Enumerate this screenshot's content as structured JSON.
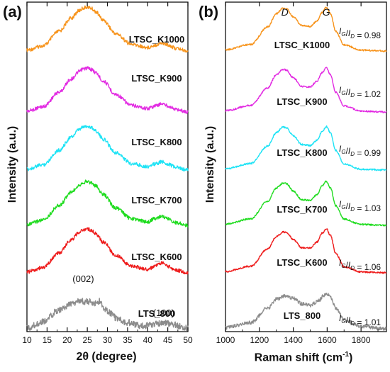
{
  "panels": [
    {
      "letter": "(a)",
      "xlabel": "2θ (degree)",
      "ylabel": "Intensity (a.u.)"
    },
    {
      "letter": "(b)",
      "xlabel": "Raman shift (cm",
      "xlabel_sup": "-1",
      "xlabel_tail": ")",
      "ylabel": "Intensity (a.u.)"
    }
  ],
  "chart_data": [
    {
      "type": "line",
      "xlabel": "2θ (degree)",
      "ylabel": "Intensity (a.u.)",
      "xlim": [
        10,
        50
      ],
      "xticks": [
        10,
        15,
        20,
        25,
        30,
        35,
        40,
        45,
        50
      ],
      "yticks_visible": false,
      "stacked_offsets": true,
      "series": [
        {
          "name": "LTSC_K1000",
          "color": "#f7941d",
          "offset": 5,
          "points": [
            [
              10,
              0.02
            ],
            [
              14,
              0.12
            ],
            [
              18,
              0.45
            ],
            [
              21,
              0.75
            ],
            [
              23,
              0.92
            ],
            [
              24,
              0.98
            ],
            [
              25,
              1.0
            ],
            [
              26,
              0.97
            ],
            [
              27,
              0.9
            ],
            [
              29,
              0.7
            ],
            [
              32,
              0.4
            ],
            [
              36,
              0.15
            ],
            [
              40,
              0.08
            ],
            [
              42,
              0.14
            ],
            [
              43.5,
              0.18
            ],
            [
              45,
              0.14
            ],
            [
              47,
              0.06
            ],
            [
              50,
              0.0
            ]
          ]
        },
        {
          "name": "LTSC_K900",
          "color": "#e22be2",
          "offset": 4,
          "points": [
            [
              10,
              0.02
            ],
            [
              14,
              0.12
            ],
            [
              18,
              0.45
            ],
            [
              21,
              0.75
            ],
            [
              23,
              0.92
            ],
            [
              24,
              0.98
            ],
            [
              25,
              1.0
            ],
            [
              26,
              0.97
            ],
            [
              27,
              0.9
            ],
            [
              29,
              0.7
            ],
            [
              32,
              0.4
            ],
            [
              36,
              0.15
            ],
            [
              40,
              0.08
            ],
            [
              42,
              0.14
            ],
            [
              43.5,
              0.19
            ],
            [
              45,
              0.14
            ],
            [
              47,
              0.06
            ],
            [
              50,
              0.0
            ]
          ]
        },
        {
          "name": "LTSC_K800",
          "color": "#1ee3f5",
          "offset": 3,
          "points": [
            [
              10,
              0.02
            ],
            [
              14,
              0.12
            ],
            [
              18,
              0.45
            ],
            [
              21,
              0.75
            ],
            [
              23,
              0.92
            ],
            [
              24,
              0.98
            ],
            [
              25,
              1.0
            ],
            [
              26,
              0.97
            ],
            [
              27,
              0.9
            ],
            [
              29,
              0.7
            ],
            [
              32,
              0.4
            ],
            [
              36,
              0.15
            ],
            [
              40,
              0.08
            ],
            [
              42,
              0.14
            ],
            [
              43.5,
              0.19
            ],
            [
              45,
              0.14
            ],
            [
              47,
              0.06
            ],
            [
              50,
              0.0
            ]
          ]
        },
        {
          "name": "LTSC_K700",
          "color": "#1fdc1f",
          "offset": 2,
          "points": [
            [
              10,
              0.02
            ],
            [
              14,
              0.12
            ],
            [
              18,
              0.45
            ],
            [
              21,
              0.75
            ],
            [
              23,
              0.92
            ],
            [
              24,
              0.98
            ],
            [
              25,
              1.0
            ],
            [
              26,
              0.97
            ],
            [
              27,
              0.9
            ],
            [
              29,
              0.7
            ],
            [
              32,
              0.4
            ],
            [
              36,
              0.15
            ],
            [
              40,
              0.08
            ],
            [
              42,
              0.16
            ],
            [
              43.5,
              0.21
            ],
            [
              45,
              0.15
            ],
            [
              47,
              0.06
            ],
            [
              50,
              0.0
            ]
          ]
        },
        {
          "name": "LTSC_K600",
          "color": "#ee1c1c",
          "offset": 1,
          "points": [
            [
              10,
              0.02
            ],
            [
              14,
              0.12
            ],
            [
              18,
              0.45
            ],
            [
              21,
              0.75
            ],
            [
              23,
              0.92
            ],
            [
              24,
              0.98
            ],
            [
              25,
              1.0
            ],
            [
              26,
              0.97
            ],
            [
              27,
              0.9
            ],
            [
              29,
              0.7
            ],
            [
              32,
              0.4
            ],
            [
              36,
              0.15
            ],
            [
              40,
              0.08
            ],
            [
              42,
              0.16
            ],
            [
              43.5,
              0.22
            ],
            [
              45,
              0.15
            ],
            [
              47,
              0.06
            ],
            [
              50,
              0.0
            ]
          ]
        },
        {
          "name": "LTS_800",
          "color": "#8c8c8c",
          "offset": 0,
          "points": [
            [
              10,
              0.04
            ],
            [
              14,
              0.2
            ],
            [
              18,
              0.5
            ],
            [
              21,
              0.65
            ],
            [
              23,
              0.72
            ],
            [
              25,
              0.72
            ],
            [
              27,
              0.66
            ],
            [
              28,
              0.72
            ],
            [
              29,
              0.55
            ],
            [
              31,
              0.42
            ],
            [
              32,
              0.3
            ],
            [
              35,
              0.18
            ],
            [
              38,
              0.1
            ],
            [
              40,
              0.1
            ],
            [
              42,
              0.14
            ],
            [
              44,
              0.16
            ],
            [
              46,
              0.14
            ],
            [
              48,
              0.08
            ],
            [
              50,
              0.04
            ]
          ]
        }
      ],
      "annotations": [
        {
          "text": "(002)",
          "x": 24
        },
        {
          "text": "(100)",
          "x": 44
        }
      ]
    },
    {
      "type": "line",
      "xlabel": "Raman shift (cm-1)",
      "ylabel": "Intensity (a.u.)",
      "xlim": [
        1000,
        1950
      ],
      "xticks": [
        1000,
        1200,
        1400,
        1600,
        1800
      ],
      "yticks_visible": false,
      "stacked_offsets": true,
      "peak_labels": [
        {
          "text": "D",
          "x": 1350
        },
        {
          "text": "G",
          "x": 1595
        }
      ],
      "series": [
        {
          "name": "LTSC_K1000",
          "color": "#f7941d",
          "offset": 5,
          "ratio_label": "= 0.98",
          "points": [
            [
              1000,
              0.03
            ],
            [
              1150,
              0.15
            ],
            [
              1250,
              0.55
            ],
            [
              1300,
              0.85
            ],
            [
              1340,
              0.98
            ],
            [
              1360,
              0.96
            ],
            [
              1400,
              0.78
            ],
            [
              1450,
              0.58
            ],
            [
              1500,
              0.56
            ],
            [
              1540,
              0.68
            ],
            [
              1570,
              0.88
            ],
            [
              1595,
              1.0
            ],
            [
              1620,
              0.85
            ],
            [
              1650,
              0.45
            ],
            [
              1700,
              0.14
            ],
            [
              1800,
              0.02
            ],
            [
              1950,
              0.0
            ]
          ]
        },
        {
          "name": "LTSC_K900",
          "color": "#e22be2",
          "offset": 4,
          "ratio_label": "= 1.02",
          "points": [
            [
              1000,
              0.03
            ],
            [
              1150,
              0.15
            ],
            [
              1250,
              0.55
            ],
            [
              1300,
              0.85
            ],
            [
              1340,
              0.97
            ],
            [
              1360,
              0.95
            ],
            [
              1400,
              0.78
            ],
            [
              1450,
              0.58
            ],
            [
              1500,
              0.57
            ],
            [
              1540,
              0.7
            ],
            [
              1570,
              0.9
            ],
            [
              1595,
              1.0
            ],
            [
              1620,
              0.85
            ],
            [
              1650,
              0.45
            ],
            [
              1700,
              0.14
            ],
            [
              1800,
              0.02
            ],
            [
              1950,
              0.0
            ]
          ]
        },
        {
          "name": "LTSC_K800",
          "color": "#1ee3f5",
          "offset": 3,
          "ratio_label": "= 0.99",
          "points": [
            [
              1000,
              0.03
            ],
            [
              1150,
              0.15
            ],
            [
              1250,
              0.55
            ],
            [
              1300,
              0.85
            ],
            [
              1340,
              0.98
            ],
            [
              1360,
              0.96
            ],
            [
              1400,
              0.78
            ],
            [
              1450,
              0.58
            ],
            [
              1500,
              0.56
            ],
            [
              1540,
              0.68
            ],
            [
              1570,
              0.88
            ],
            [
              1595,
              0.99
            ],
            [
              1620,
              0.85
            ],
            [
              1650,
              0.45
            ],
            [
              1700,
              0.14
            ],
            [
              1800,
              0.02
            ],
            [
              1950,
              0.0
            ]
          ]
        },
        {
          "name": "LTSC_K700",
          "color": "#1fdc1f",
          "offset": 2,
          "ratio_label": "= 1.03",
          "points": [
            [
              1000,
              0.03
            ],
            [
              1150,
              0.15
            ],
            [
              1250,
              0.55
            ],
            [
              1300,
              0.85
            ],
            [
              1340,
              0.96
            ],
            [
              1360,
              0.95
            ],
            [
              1400,
              0.78
            ],
            [
              1450,
              0.58
            ],
            [
              1500,
              0.57
            ],
            [
              1540,
              0.7
            ],
            [
              1570,
              0.9
            ],
            [
              1595,
              1.0
            ],
            [
              1620,
              0.85
            ],
            [
              1650,
              0.45
            ],
            [
              1700,
              0.14
            ],
            [
              1800,
              0.02
            ],
            [
              1950,
              0.0
            ]
          ]
        },
        {
          "name": "LTSC_K600",
          "color": "#ee1c1c",
          "offset": 1,
          "ratio_label": "= 1.06",
          "points": [
            [
              1000,
              0.03
            ],
            [
              1150,
              0.15
            ],
            [
              1250,
              0.55
            ],
            [
              1300,
              0.82
            ],
            [
              1340,
              0.93
            ],
            [
              1360,
              0.92
            ],
            [
              1400,
              0.76
            ],
            [
              1450,
              0.57
            ],
            [
              1500,
              0.57
            ],
            [
              1540,
              0.7
            ],
            [
              1570,
              0.9
            ],
            [
              1595,
              1.0
            ],
            [
              1620,
              0.85
            ],
            [
              1650,
              0.45
            ],
            [
              1700,
              0.14
            ],
            [
              1800,
              0.02
            ],
            [
              1950,
              0.0
            ]
          ]
        },
        {
          "name": "LTS_800",
          "color": "#8c8c8c",
          "offset": 0,
          "ratio_label": "= 1.01",
          "points": [
            [
              1000,
              0.05
            ],
            [
              1150,
              0.18
            ],
            [
              1250,
              0.55
            ],
            [
              1300,
              0.78
            ],
            [
              1350,
              0.86
            ],
            [
              1400,
              0.8
            ],
            [
              1450,
              0.66
            ],
            [
              1500,
              0.62
            ],
            [
              1550,
              0.74
            ],
            [
              1580,
              0.88
            ],
            [
              1600,
              0.92
            ],
            [
              1620,
              0.82
            ],
            [
              1650,
              0.55
            ],
            [
              1700,
              0.25
            ],
            [
              1800,
              0.08
            ],
            [
              1950,
              0.02
            ]
          ]
        }
      ]
    }
  ]
}
